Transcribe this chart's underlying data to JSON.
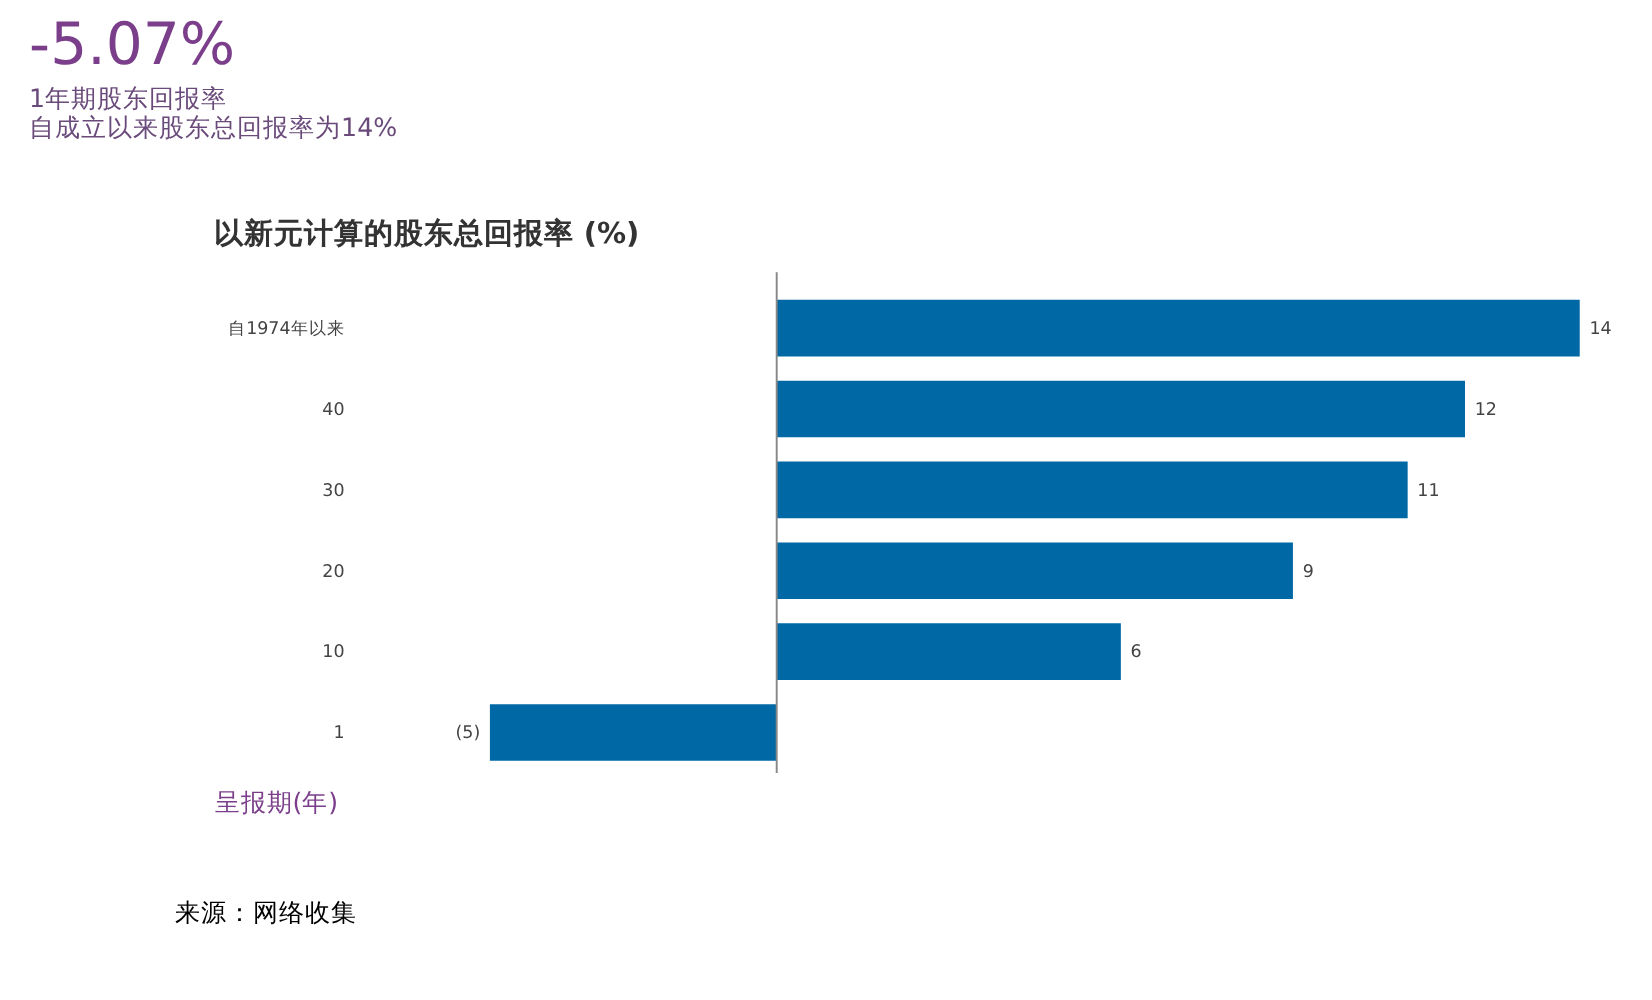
{
  "chart_data": {
    "type": "bar",
    "orientation": "horizontal",
    "title": "-5.07%",
    "subtitle": [
      "1年期股东回报率",
      "自成立以来股东总回报率为14%"
    ],
    "ylabel": "呈报期(年)",
    "annotations": [
      "以新元计算的股东总回报率 (%)",
      "来源：网络收集"
    ],
    "categories": [
      "自1974年以来",
      "40",
      "30",
      "20",
      "10",
      "1"
    ],
    "values": [
      14,
      12,
      11,
      9,
      6,
      -5
    ],
    "value_labels": [
      "14",
      "12",
      "11",
      "9",
      "6",
      "(5)"
    ],
    "color": "#0068a5",
    "grid": false
  }
}
